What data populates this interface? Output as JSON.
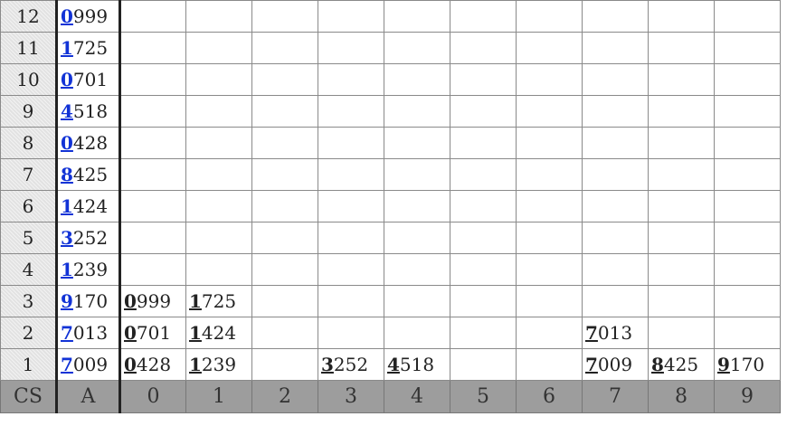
{
  "footer": {
    "corner": "CS",
    "a_label": "A",
    "buckets": [
      "0",
      "1",
      "2",
      "3",
      "4",
      "5",
      "6",
      "7",
      "8",
      "9"
    ]
  },
  "rows": [
    {
      "label": "12",
      "a": {
        "digit": "0",
        "rest": "999"
      },
      "buckets": [
        null,
        null,
        null,
        null,
        null,
        null,
        null,
        null,
        null,
        null
      ]
    },
    {
      "label": "11",
      "a": {
        "digit": "1",
        "rest": "725"
      },
      "buckets": [
        null,
        null,
        null,
        null,
        null,
        null,
        null,
        null,
        null,
        null
      ]
    },
    {
      "label": "10",
      "a": {
        "digit": "0",
        "rest": "701"
      },
      "buckets": [
        null,
        null,
        null,
        null,
        null,
        null,
        null,
        null,
        null,
        null
      ]
    },
    {
      "label": "9",
      "a": {
        "digit": "4",
        "rest": "518"
      },
      "buckets": [
        null,
        null,
        null,
        null,
        null,
        null,
        null,
        null,
        null,
        null
      ]
    },
    {
      "label": "8",
      "a": {
        "digit": "0",
        "rest": "428"
      },
      "buckets": [
        null,
        null,
        null,
        null,
        null,
        null,
        null,
        null,
        null,
        null
      ]
    },
    {
      "label": "7",
      "a": {
        "digit": "8",
        "rest": "425"
      },
      "buckets": [
        null,
        null,
        null,
        null,
        null,
        null,
        null,
        null,
        null,
        null
      ]
    },
    {
      "label": "6",
      "a": {
        "digit": "1",
        "rest": "424"
      },
      "buckets": [
        null,
        null,
        null,
        null,
        null,
        null,
        null,
        null,
        null,
        null
      ]
    },
    {
      "label": "5",
      "a": {
        "digit": "3",
        "rest": "252"
      },
      "buckets": [
        null,
        null,
        null,
        null,
        null,
        null,
        null,
        null,
        null,
        null
      ]
    },
    {
      "label": "4",
      "a": {
        "digit": "1",
        "rest": "239"
      },
      "buckets": [
        null,
        null,
        null,
        null,
        null,
        null,
        null,
        null,
        null,
        null
      ]
    },
    {
      "label": "3",
      "a": {
        "digit": "9",
        "rest": "170"
      },
      "buckets": [
        {
          "digit": "0",
          "rest": "999"
        },
        {
          "digit": "1",
          "rest": "725"
        },
        null,
        null,
        null,
        null,
        null,
        null,
        null,
        null
      ]
    },
    {
      "label": "2",
      "a": {
        "digit": "7",
        "rest": "013"
      },
      "buckets": [
        {
          "digit": "0",
          "rest": "701"
        },
        {
          "digit": "1",
          "rest": "424"
        },
        null,
        null,
        null,
        null,
        null,
        {
          "digit": "7",
          "rest": "013"
        },
        null,
        null
      ]
    },
    {
      "label": "1",
      "a": {
        "digit": "7",
        "rest": "009"
      },
      "buckets": [
        {
          "digit": "0",
          "rest": "428"
        },
        {
          "digit": "1",
          "rest": "239"
        },
        null,
        {
          "digit": "3",
          "rest": "252"
        },
        {
          "digit": "4",
          "rest": "518"
        },
        null,
        null,
        {
          "digit": "7",
          "rest": "009"
        },
        {
          "digit": "8",
          "rest": "425"
        },
        {
          "digit": "9",
          "rest": "170"
        }
      ]
    }
  ]
}
